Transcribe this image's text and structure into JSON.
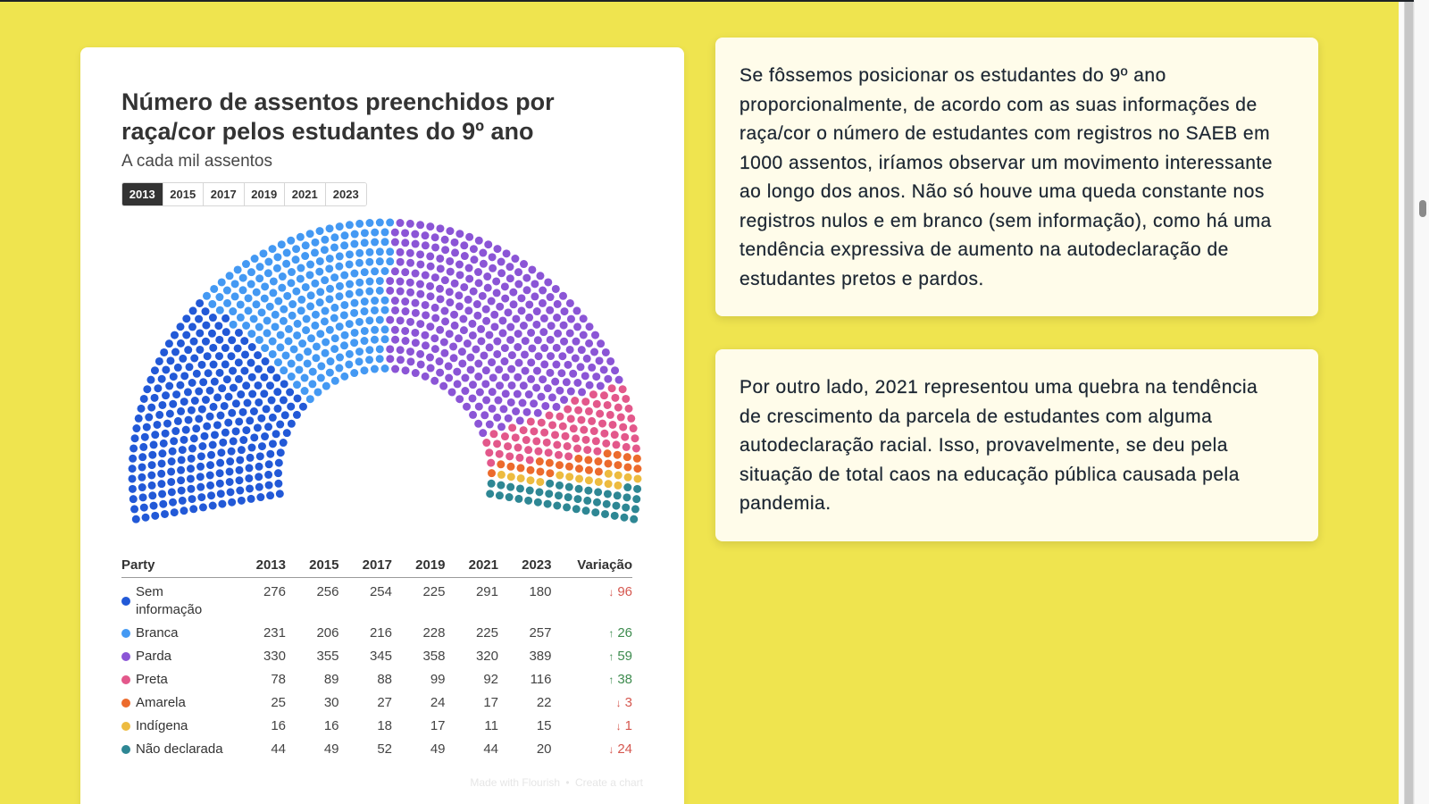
{
  "chart_card": {
    "title_lines": [
      "Número de assentos preenchidos por",
      "raça/cor pelos estudantes do 9º ano"
    ],
    "subtitle": "A cada mil assentos",
    "footer": {
      "made_with": "Made with Flourish",
      "separator": "•",
      "create": "Create a chart"
    }
  },
  "chart_data": {
    "type": "pie",
    "variant": "parliament",
    "title": "Número de assentos preenchidos por raça/cor pelos estudantes do 9º ano",
    "subtitle": "A cada mil assentos",
    "total_seats": 1000,
    "selected_year": "2013",
    "years": [
      "2013",
      "2015",
      "2017",
      "2019",
      "2021",
      "2023"
    ],
    "table": {
      "header_party": "Party",
      "header_variation": "Variação"
    },
    "variation_colors": {
      "down": "#d5574f",
      "up": "#3d8b4e"
    },
    "categories": [
      {
        "name": "Sem informação",
        "color": "#2259d7",
        "values": [
          276,
          256,
          254,
          225,
          291,
          180
        ],
        "variation": {
          "direction": "down",
          "arrow": "↓",
          "value": 96
        }
      },
      {
        "name": "Branca",
        "color": "#4499f3",
        "values": [
          231,
          206,
          216,
          228,
          225,
          257
        ],
        "variation": {
          "direction": "up",
          "arrow": "↑",
          "value": 26
        }
      },
      {
        "name": "Parda",
        "color": "#8b55d6",
        "values": [
          330,
          355,
          345,
          358,
          320,
          389
        ],
        "variation": {
          "direction": "up",
          "arrow": "↑",
          "value": 59
        }
      },
      {
        "name": "Preta",
        "color": "#e3588b",
        "values": [
          78,
          89,
          88,
          99,
          92,
          116
        ],
        "variation": {
          "direction": "up",
          "arrow": "↑",
          "value": 38
        }
      },
      {
        "name": "Amarela",
        "color": "#ec6b2d",
        "values": [
          25,
          30,
          27,
          24,
          17,
          22
        ],
        "variation": {
          "direction": "down",
          "arrow": "↓",
          "value": 3
        }
      },
      {
        "name": "Indígena",
        "color": "#edbb40",
        "values": [
          16,
          16,
          18,
          17,
          11,
          15
        ],
        "variation": {
          "direction": "down",
          "arrow": "↓",
          "value": 1
        }
      },
      {
        "name": "Não declarada",
        "color": "#2e8794",
        "values": [
          44,
          49,
          52,
          49,
          44,
          20
        ],
        "variation": {
          "direction": "down",
          "arrow": "↓",
          "value": 24
        }
      }
    ]
  },
  "cards": [
    {
      "lines": [
        "Se fôssemos posicionar os estudantes do 9º ano",
        "proporcionalmente, de acordo com as suas informações de",
        "raça/cor o número de estudantes com registros no SAEB em",
        "1000 assentos, iríamos observar um movimento interessante",
        "ao longo dos anos. Não só houve uma queda constante nos",
        "registros nulos e em branco (sem informação), como há uma",
        "tendência expressiva de aumento na autodeclaração de",
        "estudantes pretos e pardos."
      ]
    },
    {
      "lines": [
        "Por outro lado, 2021 representou uma quebra na tendência",
        "de crescimento da parcela de estudantes com alguma",
        "autodeclaração racial. Isso, provavelmente, se deu pela",
        "situação de total caos na educação pública causada pela",
        "pandemia."
      ]
    }
  ]
}
